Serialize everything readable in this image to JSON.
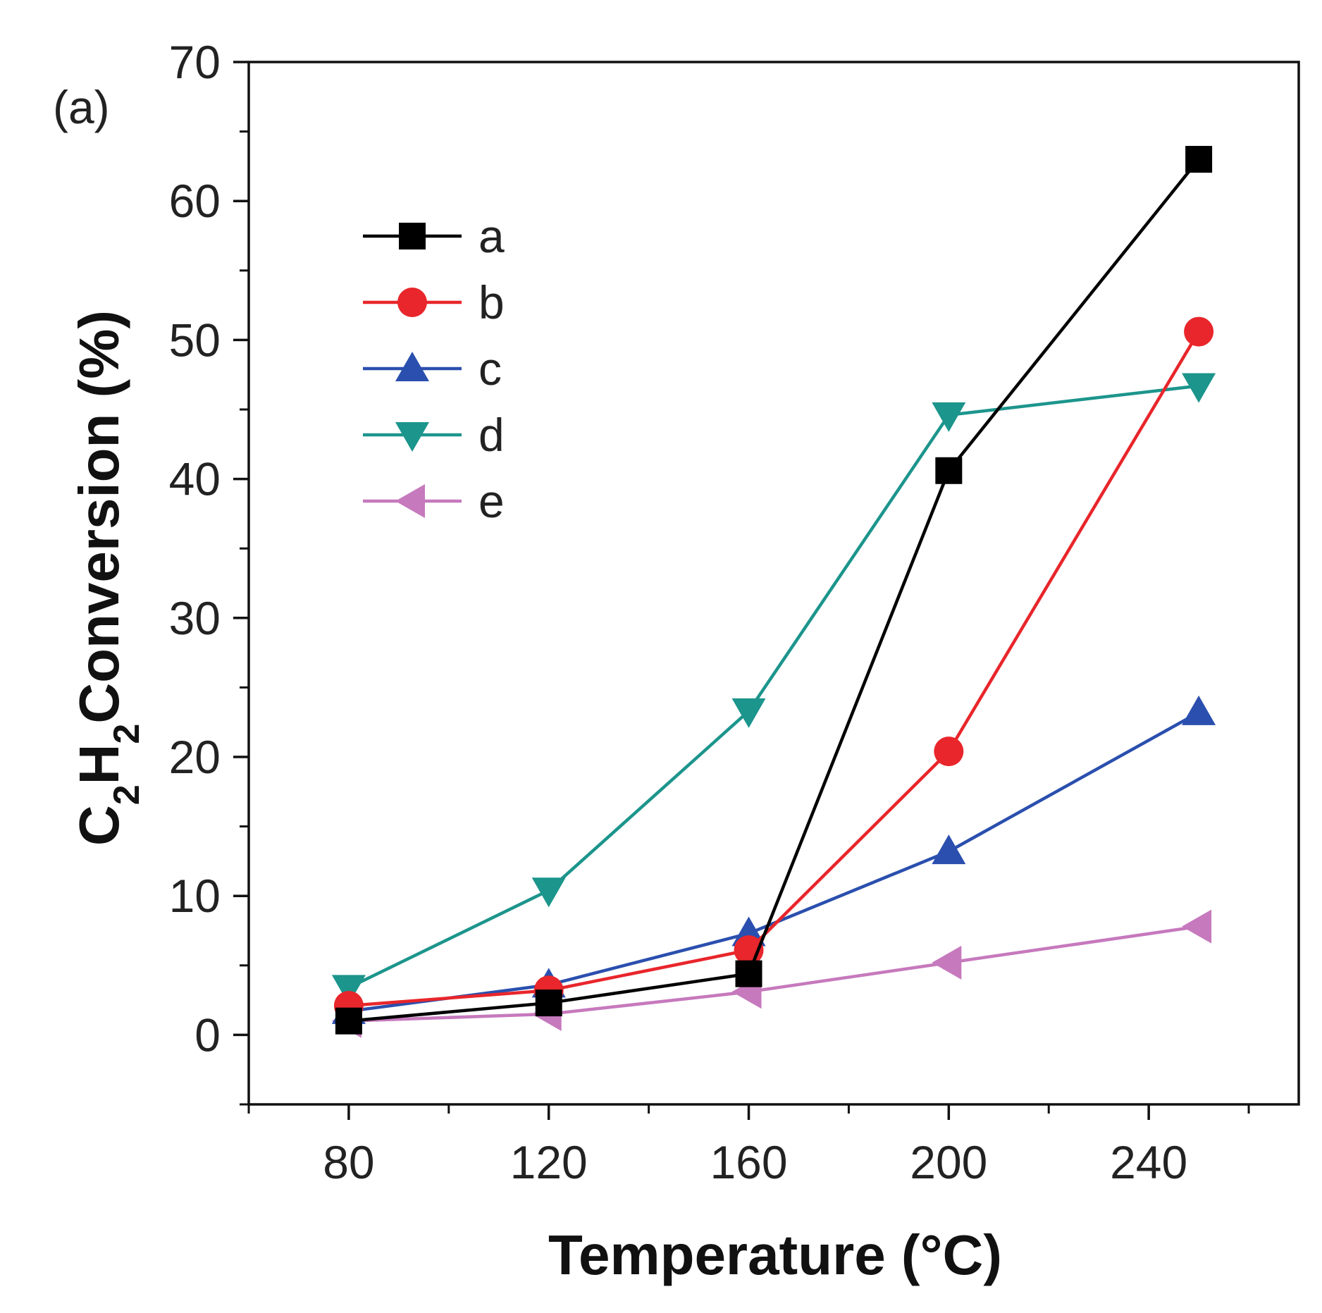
{
  "chart_data": {
    "type": "line",
    "panel_label": "(a)",
    "xlabel": "Temperature (°C)",
    "ylabel": {
      "parts": [
        {
          "text": "C",
          "sub": false
        },
        {
          "text": "2",
          "sub": true
        },
        {
          "text": "H",
          "sub": false
        },
        {
          "text": "2",
          "sub": true
        },
        {
          "text": "Conversion (%)",
          "sub": false
        }
      ]
    },
    "xlim": [
      60,
      270
    ],
    "ylim": [
      -5,
      70
    ],
    "x_ticks": [
      80,
      120,
      160,
      200,
      240
    ],
    "x_tick_labels": [
      "80",
      "120",
      "160",
      "200",
      "240"
    ],
    "x_minor_ticks": [
      60,
      100,
      140,
      180,
      220,
      260
    ],
    "y_ticks": [
      0,
      10,
      20,
      30,
      40,
      50,
      60,
      70
    ],
    "y_tick_labels": [
      "0",
      "10",
      "20",
      "30",
      "40",
      "50",
      "60",
      "70"
    ],
    "y_minor_ticks": [
      -5,
      5,
      15,
      25,
      35,
      45,
      55,
      65
    ],
    "legend_position": "upper-left",
    "grid": false,
    "x": [
      80,
      120,
      160,
      200,
      250
    ],
    "series": [
      {
        "name": "a",
        "color": "#000000",
        "marker": "square",
        "values": [
          1.0,
          2.3,
          4.4,
          40.6,
          63.0
        ]
      },
      {
        "name": "b",
        "color": "#e8262b",
        "marker": "circle",
        "values": [
          2.1,
          3.2,
          6.1,
          20.4,
          50.6
        ]
      },
      {
        "name": "c",
        "color": "#2a4fae",
        "marker": "triangle-up",
        "values": [
          1.7,
          3.6,
          7.3,
          13.2,
          23.2
        ]
      },
      {
        "name": "d",
        "color": "#1c958c",
        "marker": "triangle-down",
        "values": [
          3.4,
          10.4,
          23.3,
          44.6,
          46.7
        ]
      },
      {
        "name": "e",
        "color": "#c679bd",
        "marker": "triangle-left",
        "values": [
          1.0,
          1.5,
          3.1,
          5.2,
          7.8
        ]
      }
    ]
  }
}
